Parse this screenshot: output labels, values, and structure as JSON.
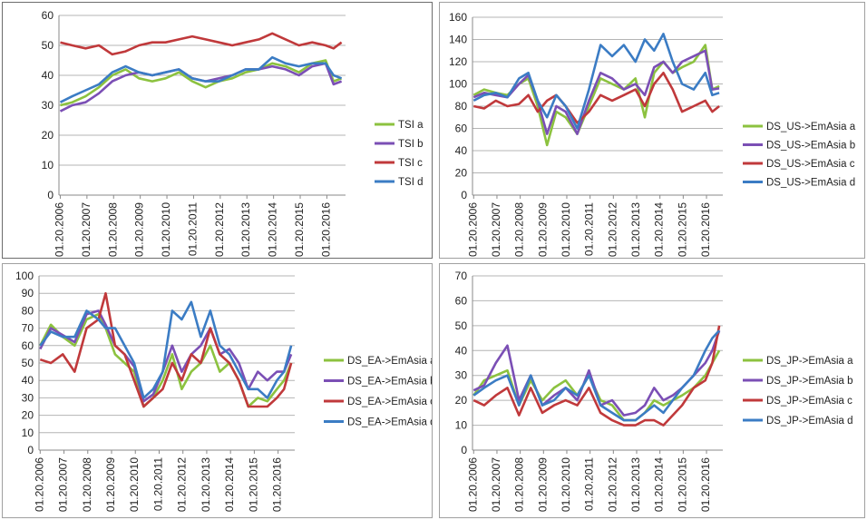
{
  "colors": {
    "a": "#8cc23f",
    "b": "#7b4fb5",
    "c": "#c0393b",
    "d": "#3b7cc4",
    "grid": "#b4b4b4"
  },
  "chart_data": [
    {
      "type": "line",
      "ylim": [
        0,
        60
      ],
      "yticks": [
        0,
        10,
        20,
        30,
        40,
        50,
        60
      ],
      "x_ticks": [
        "01.20.2006",
        "01.20.2007",
        "01.20.2008",
        "01.20.2009",
        "01.20.2010",
        "01.20.2011",
        "01.20.2012",
        "01.20.2013",
        "01.20.2014",
        "01.20.2015",
        "01.20.2016"
      ],
      "x": [
        2006.05,
        2006.5,
        2007.0,
        2007.5,
        2008.0,
        2008.5,
        2009.0,
        2009.5,
        2010.0,
        2010.5,
        2011.0,
        2011.5,
        2012.0,
        2012.5,
        2013.0,
        2013.5,
        2014.0,
        2014.5,
        2015.0,
        2015.5,
        2016.0,
        2016.3,
        2016.6
      ],
      "grid": true,
      "legend": "right",
      "series": [
        {
          "name": "TSI a",
          "key": "a",
          "values": [
            30,
            31,
            33,
            36,
            40,
            42,
            39,
            38,
            39,
            41,
            38,
            36,
            38,
            39,
            41,
            42,
            44,
            43,
            41,
            44,
            45,
            38,
            39
          ]
        },
        {
          "name": "TSI b",
          "key": "b",
          "values": [
            28,
            30,
            31,
            34,
            38,
            40,
            41,
            40,
            41,
            42,
            39,
            38,
            39,
            40,
            42,
            42,
            43,
            42,
            40,
            43,
            44,
            37,
            38
          ]
        },
        {
          "name": "TSI c",
          "key": "c",
          "values": [
            51,
            50,
            49,
            50,
            47,
            48,
            50,
            51,
            51,
            52,
            53,
            52,
            51,
            50,
            51,
            52,
            54,
            52,
            50,
            51,
            50,
            49,
            51
          ]
        },
        {
          "name": "TSI d",
          "key": "d",
          "values": [
            31,
            33,
            35,
            37,
            41,
            43,
            41,
            40,
            41,
            42,
            39,
            38,
            38,
            40,
            42,
            42,
            46,
            44,
            43,
            44,
            44,
            40,
            39
          ]
        }
      ]
    },
    {
      "type": "line",
      "ylim": [
        0,
        160
      ],
      "yticks": [
        0,
        20,
        40,
        60,
        80,
        100,
        120,
        140,
        160
      ],
      "x_ticks": [
        "01.20.2006",
        "01.20.2007",
        "01.20.2008",
        "01.20.2009",
        "01.20.2010",
        "01.20.2011",
        "01.20.2012",
        "01.20.2013",
        "01.20.2014",
        "01.20.2015",
        "01.20.2016"
      ],
      "x": [
        2006.05,
        2006.5,
        2007.0,
        2007.5,
        2008.0,
        2008.4,
        2008.8,
        2009.2,
        2009.6,
        2010.0,
        2010.5,
        2011.0,
        2011.5,
        2012.0,
        2012.5,
        2013.0,
        2013.4,
        2013.8,
        2014.2,
        2014.6,
        2015.0,
        2015.5,
        2016.0,
        2016.3,
        2016.6
      ],
      "grid": true,
      "legend": "right",
      "series": [
        {
          "name": "DS_US->EmAsia a",
          "key": "a",
          "values": [
            90,
            95,
            92,
            90,
            100,
            105,
            80,
            45,
            75,
            70,
            55,
            80,
            105,
            100,
            95,
            105,
            70,
            110,
            120,
            110,
            115,
            120,
            135,
            95,
            98
          ]
        },
        {
          "name": "DS_US->EmAsia b",
          "key": "b",
          "values": [
            88,
            92,
            90,
            88,
            100,
            108,
            85,
            55,
            80,
            75,
            55,
            85,
            110,
            105,
            95,
            100,
            90,
            115,
            120,
            110,
            120,
            125,
            130,
            95,
            96
          ]
        },
        {
          "name": "DS_US->EmAsia c",
          "key": "c",
          "values": [
            80,
            78,
            85,
            80,
            82,
            90,
            75,
            85,
            90,
            80,
            65,
            75,
            90,
            85,
            90,
            95,
            80,
            100,
            110,
            95,
            75,
            80,
            85,
            75,
            80
          ]
        },
        {
          "name": "DS_US->EmAsia d",
          "key": "d",
          "values": [
            85,
            90,
            92,
            88,
            105,
            110,
            85,
            70,
            90,
            80,
            60,
            95,
            135,
            125,
            135,
            120,
            140,
            130,
            145,
            120,
            100,
            95,
            110,
            90,
            92
          ]
        }
      ]
    },
    {
      "type": "line",
      "ylim": [
        0,
        100
      ],
      "yticks": [
        0,
        10,
        20,
        30,
        40,
        50,
        60,
        70,
        80,
        90,
        100
      ],
      "x_ticks": [
        "01.20.2006",
        "01.20.2007",
        "01.20.2008",
        "01.20.2009",
        "01.20.2010",
        "01.20.2011",
        "01.20.2012",
        "01.20.2013",
        "01.20.2014",
        "01.20.2015",
        "01.20.2016"
      ],
      "x": [
        2006.05,
        2006.5,
        2007.0,
        2007.5,
        2008.0,
        2008.5,
        2008.8,
        2009.2,
        2009.6,
        2010.0,
        2010.4,
        2010.8,
        2011.2,
        2011.6,
        2012.0,
        2012.4,
        2012.8,
        2013.2,
        2013.6,
        2014.0,
        2014.4,
        2014.8,
        2015.2,
        2015.6,
        2016.0,
        2016.3,
        2016.6
      ],
      "grid": true,
      "legend": "right",
      "series": [
        {
          "name": "DS_EA->EmAsia a",
          "key": "a",
          "values": [
            60,
            72,
            65,
            60,
            75,
            78,
            70,
            55,
            50,
            45,
            25,
            30,
            40,
            55,
            35,
            45,
            50,
            60,
            45,
            50,
            40,
            25,
            30,
            28,
            35,
            40,
            50
          ]
        },
        {
          "name": "DS_EA->EmAsia b",
          "key": "b",
          "values": [
            58,
            70,
            66,
            62,
            78,
            80,
            72,
            60,
            55,
            48,
            28,
            32,
            45,
            60,
            45,
            55,
            60,
            70,
            55,
            58,
            50,
            35,
            45,
            40,
            45,
            45,
            55
          ]
        },
        {
          "name": "DS_EA->EmAsia c",
          "key": "c",
          "values": [
            52,
            50,
            55,
            45,
            70,
            75,
            90,
            60,
            55,
            40,
            25,
            30,
            35,
            50,
            40,
            55,
            50,
            70,
            55,
            50,
            40,
            25,
            25,
            25,
            30,
            35,
            50
          ]
        },
        {
          "name": "DS_EA->EmAsia d",
          "key": "d",
          "values": [
            60,
            68,
            65,
            65,
            80,
            75,
            70,
            70,
            60,
            50,
            30,
            35,
            45,
            80,
            75,
            85,
            65,
            80,
            60,
            55,
            45,
            35,
            35,
            30,
            40,
            45,
            60
          ]
        }
      ]
    },
    {
      "type": "line",
      "ylim": [
        0,
        70
      ],
      "yticks": [
        0,
        10,
        20,
        30,
        40,
        50,
        60,
        70
      ],
      "x_ticks": [
        "01.20.2006",
        "01.20.2007",
        "01.20.2008",
        "01.20.2009",
        "01.20.2010",
        "01.20.2011",
        "01.20.2012",
        "01.20.2013",
        "01.20.2014",
        "01.20.2015",
        "01.20.2016"
      ],
      "x": [
        2006.05,
        2006.5,
        2007.0,
        2007.5,
        2008.0,
        2008.5,
        2009.0,
        2009.5,
        2010.0,
        2010.5,
        2011.0,
        2011.5,
        2012.0,
        2012.5,
        2013.0,
        2013.4,
        2013.8,
        2014.2,
        2014.6,
        2015.0,
        2015.5,
        2016.0,
        2016.3,
        2016.6
      ],
      "grid": true,
      "legend": "right",
      "series": [
        {
          "name": "DS_JP->EmAsia a",
          "key": "a",
          "values": [
            22,
            28,
            30,
            32,
            18,
            28,
            20,
            25,
            28,
            22,
            30,
            20,
            18,
            12,
            12,
            15,
            20,
            18,
            20,
            22,
            25,
            30,
            35,
            40
          ]
        },
        {
          "name": "DS_JP->EmAsia b",
          "key": "b",
          "values": [
            24,
            26,
            35,
            42,
            20,
            30,
            18,
            22,
            25,
            20,
            32,
            18,
            20,
            14,
            15,
            18,
            25,
            20,
            22,
            25,
            30,
            35,
            40,
            48
          ]
        },
        {
          "name": "DS_JP->EmAsia c",
          "key": "c",
          "values": [
            20,
            18,
            22,
            25,
            14,
            25,
            15,
            18,
            20,
            18,
            25,
            15,
            12,
            10,
            10,
            12,
            12,
            10,
            14,
            18,
            25,
            28,
            35,
            50
          ]
        },
        {
          "name": "DS_JP->EmAsia d",
          "key": "d",
          "values": [
            22,
            25,
            28,
            30,
            18,
            30,
            18,
            20,
            25,
            22,
            30,
            18,
            15,
            12,
            12,
            15,
            18,
            15,
            20,
            25,
            30,
            40,
            45,
            48
          ]
        }
      ]
    }
  ]
}
